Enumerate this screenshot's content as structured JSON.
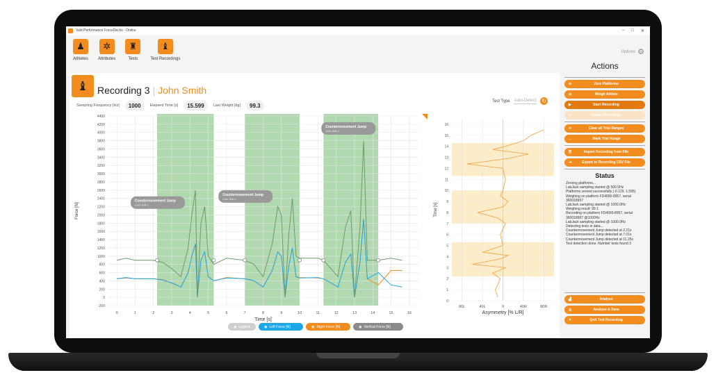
{
  "window": {
    "title": "Vald Performance ForceDecks - Online",
    "controls": [
      "–",
      "□",
      "✕"
    ]
  },
  "toolbar": {
    "items": [
      {
        "label": "Athletes",
        "icon": "athlete-icon"
      },
      {
        "label": "Attributes",
        "icon": "attributes-icon"
      },
      {
        "label": "Tests",
        "icon": "tests-icon"
      },
      {
        "label": "Test Recordings",
        "icon": "recording-icon"
      }
    ],
    "options_label": "Options"
  },
  "recording": {
    "title": "Recording 3",
    "separator": "|",
    "athlete": "John Smith",
    "stats": [
      {
        "label": "Sampling Frequency [Hz]",
        "value": "1000"
      },
      {
        "label": "Elapsed Time [s]",
        "value": "15.599"
      },
      {
        "label": "Last Weight [kg]",
        "value": "99.3"
      }
    ],
    "test_type_label": "Test Type",
    "test_type_value": "Auto-Detect"
  },
  "legend": {
    "items": [
      {
        "label": "Legend",
        "color": "#cfcfcf"
      },
      {
        "label": "Left Force [N]",
        "color": "#1ea7e8"
      },
      {
        "label": "Right Force [N]",
        "color": "#f28c1e"
      },
      {
        "label": "Vertical Force [N]",
        "color": "#8a8a8a"
      }
    ]
  },
  "actions": {
    "title": "Actions",
    "buttons": [
      {
        "label": "Zero Platforms",
        "state": "normal"
      },
      {
        "label": "Weigh Athlete",
        "state": "normal"
      },
      {
        "label": "Start Recording",
        "state": "active"
      },
      {
        "label": "Pause Recording",
        "state": "disabled"
      },
      {
        "label": "Clear all Trial Ranges",
        "state": "normal"
      },
      {
        "label": "Mark Trial Range",
        "state": "normal"
      },
      {
        "label": "Import Recording from File",
        "state": "normal"
      },
      {
        "label": "Export to Recording CSV File",
        "state": "normal"
      }
    ],
    "bottom_buttons": [
      {
        "label": "Analyse"
      },
      {
        "label": "Analyse & Save"
      },
      {
        "label": "Quit Test Recording"
      }
    ]
  },
  "status": {
    "title": "Status",
    "lines": [
      "Zeroing platforms...",
      "LabJack sampling started @ 500.0Hz",
      "Platforms zeroed successfully (-0.129, 1.595)",
      "Weighing on platform FD4000-8957, serial 360018957",
      "LabJack sampling started @ 1000.0Hz",
      "Weighing result: 99.1",
      "Recording on platform FD4000-8957, serial 360018957 @1000Hz",
      "LabJack sampling started @ 1000.0Hz",
      "Detecting tests in data...",
      "Countermovement Jump detected at 2.21s",
      "Countermovement Jump detected at 7.01s",
      "Countermovement Jump detected at 11.25s",
      "Test detection done. Number tests found 3"
    ]
  },
  "chart_data": [
    {
      "type": "line",
      "xlabel": "Time [s]",
      "ylabel": "Force [N]",
      "xlim": [
        -0.5,
        16.5
      ],
      "ylim": [
        -200,
        4400
      ],
      "xticks": [
        0,
        1,
        2,
        3,
        4,
        5,
        6,
        7,
        8,
        9,
        10,
        11,
        12,
        13,
        14,
        15,
        16
      ],
      "yticks": [
        -200,
        0,
        200,
        400,
        600,
        800,
        1000,
        1200,
        1400,
        1600,
        1800,
        2000,
        2200,
        2400,
        2600,
        2800,
        3000,
        3200,
        3400,
        3600,
        3800,
        4000,
        4200,
        4400
      ],
      "trial_ranges": [
        {
          "start": 2.2,
          "end": 5.3,
          "label": "Countermovement Jump",
          "sub": "Limb: Both 1"
        },
        {
          "start": 7.0,
          "end": 10.0,
          "label": "Countermovement Jump",
          "sub": "Limb: Both 2"
        },
        {
          "start": 11.3,
          "end": 14.3,
          "label": "Countermovement Jump",
          "sub": "Limb: Both 3"
        }
      ],
      "x": [
        0,
        0.5,
        1,
        2,
        2.5,
        3,
        3.5,
        3.9,
        4.1,
        4.3,
        4.4,
        4.6,
        4.8,
        5.0,
        5.3,
        6,
        7,
        7.5,
        8,
        8.5,
        8.8,
        9.0,
        9.2,
        9.4,
        9.6,
        9.8,
        10,
        11,
        11.3,
        11.7,
        12.1,
        12.5,
        12.8,
        13.0,
        13.3,
        13.5,
        13.7,
        14.3,
        15,
        15.6
      ],
      "series": [
        {
          "name": "Vertical Force [N]",
          "color": "#8a8a8a",
          "band_color": "#6a9a6a",
          "values": [
            900,
            950,
            900,
            900,
            850,
            700,
            500,
            1200,
            2000,
            2600,
            0,
            1800,
            2200,
            1000,
            800,
            950,
            900,
            800,
            500,
            1300,
            2200,
            2000,
            0,
            1500,
            2400,
            1000,
            950,
            950,
            900,
            700,
            500,
            1700,
            2100,
            0,
            1700,
            3800,
            900,
            900,
            950,
            900
          ]
        },
        {
          "name": "Left Force [N]",
          "color": "#1ea7e8",
          "values": [
            450,
            480,
            450,
            450,
            420,
            350,
            250,
            600,
            1000,
            1300,
            0,
            900,
            1100,
            500,
            400,
            470,
            450,
            400,
            250,
            650,
            1100,
            1000,
            0,
            750,
            1200,
            500,
            470,
            480,
            450,
            350,
            250,
            850,
            1050,
            0,
            850,
            1900,
            450,
            600,
            300,
            250
          ]
        },
        {
          "name": "Right Force [N]",
          "color": "#f28c1e",
          "values": [
            450,
            470,
            450,
            450,
            430,
            350,
            250,
            600,
            1000,
            1300,
            0,
            900,
            1100,
            500,
            400,
            480,
            450,
            400,
            250,
            650,
            1100,
            1000,
            0,
            750,
            1200,
            500,
            480,
            470,
            450,
            350,
            250,
            850,
            1050,
            0,
            850,
            1900,
            450,
            300,
            650,
            650
          ]
        }
      ]
    },
    {
      "type": "line",
      "xlabel": "Asymmetry [% L/R]",
      "ylabel": "Time [s]",
      "xlim": [
        -100,
        100
      ],
      "ylim": [
        0,
        16.5
      ],
      "xticks": [
        {
          "v": -80,
          "label": "80L"
        },
        {
          "v": -40,
          "label": "40L"
        },
        {
          "v": 0,
          "label": "0"
        },
        {
          "v": 40,
          "label": "40R"
        },
        {
          "v": 80,
          "label": "80R"
        }
      ],
      "yticks": [
        0,
        1,
        2,
        3,
        4,
        5,
        6,
        7,
        8,
        9,
        10,
        11,
        12,
        13,
        14,
        15,
        16
      ],
      "highlight_ranges": [
        [
          2.2,
          5.3
        ],
        [
          7.0,
          10.0
        ],
        [
          11.3,
          14.3
        ]
      ],
      "time": [
        0.3,
        1,
        2,
        2.5,
        3,
        3.3,
        3.8,
        4.1,
        4.4,
        5,
        6,
        7,
        7.5,
        8,
        8.5,
        9,
        9.5,
        10,
        11,
        12,
        12.4,
        12.9,
        13.3,
        13.7,
        14,
        14.5,
        15,
        15.5
      ],
      "asym": [
        -10,
        -15,
        -5,
        -20,
        5,
        -60,
        -5,
        10,
        -40,
        0,
        -5,
        5,
        -10,
        -50,
        0,
        10,
        -5,
        0,
        5,
        0,
        -70,
        10,
        50,
        -20,
        5,
        40,
        55,
        80
      ]
    }
  ]
}
